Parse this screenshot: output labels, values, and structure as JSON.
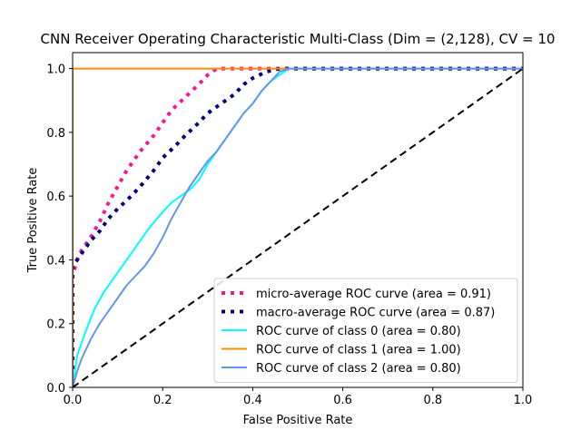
{
  "chart_data": {
    "type": "line",
    "title": "CNN Receiver Operating Characteristic Multi-Class (Dim = (2,128), CV = 10",
    "xlabel": "False Positive Rate",
    "ylabel": "True Positive Rate",
    "xlim": [
      0.0,
      1.0
    ],
    "ylim": [
      0.0,
      1.05
    ],
    "xticks": [
      0.0,
      0.2,
      0.4,
      0.6,
      0.8,
      1.0
    ],
    "yticks": [
      0.0,
      0.2,
      0.4,
      0.6,
      0.8,
      1.0
    ],
    "xtick_labels": [
      "0.0",
      "0.2",
      "0.4",
      "0.6",
      "0.8",
      "1.0"
    ],
    "ytick_labels": [
      "0.0",
      "0.2",
      "0.4",
      "0.6",
      "0.8",
      "1.0"
    ],
    "grid": false,
    "legend_position": "lower right",
    "series": [
      {
        "name": "micro-average ROC curve (area = 0.91)",
        "color": "#ff1493",
        "style": "dotted",
        "x": [
          0.0,
          0.0,
          0.01,
          0.02,
          0.04,
          0.06,
          0.08,
          0.1,
          0.12,
          0.15,
          0.18,
          0.2,
          0.22,
          0.25,
          0.28,
          0.3,
          0.32,
          0.35,
          0.4,
          0.5,
          0.7,
          1.0
        ],
        "y": [
          0.0,
          0.35,
          0.4,
          0.43,
          0.47,
          0.52,
          0.58,
          0.63,
          0.68,
          0.74,
          0.79,
          0.83,
          0.87,
          0.91,
          0.95,
          0.98,
          1.0,
          1.0,
          1.0,
          1.0,
          1.0,
          1.0
        ]
      },
      {
        "name": "macro-average ROC curve (area = 0.87)",
        "color": "#000080",
        "style": "dotted",
        "x": [
          0.0,
          0.0,
          0.02,
          0.04,
          0.06,
          0.08,
          0.1,
          0.13,
          0.15,
          0.18,
          0.2,
          0.23,
          0.25,
          0.28,
          0.3,
          0.33,
          0.36,
          0.38,
          0.4,
          0.43,
          0.46,
          0.48,
          0.5,
          0.6,
          0.8,
          1.0
        ],
        "y": [
          0.0,
          0.38,
          0.42,
          0.46,
          0.49,
          0.53,
          0.56,
          0.6,
          0.63,
          0.68,
          0.72,
          0.76,
          0.79,
          0.83,
          0.86,
          0.89,
          0.92,
          0.95,
          0.97,
          0.99,
          1.0,
          1.0,
          1.0,
          1.0,
          1.0,
          1.0
        ]
      },
      {
        "name": "ROC curve of class 0 (area = 0.80)",
        "color": "#00ffff",
        "style": "solid",
        "x": [
          0.0,
          0.01,
          0.02,
          0.03,
          0.05,
          0.07,
          0.09,
          0.11,
          0.13,
          0.15,
          0.17,
          0.2,
          0.22,
          0.24,
          0.26,
          0.28,
          0.3,
          0.32,
          0.34,
          0.36,
          0.38,
          0.4,
          0.42,
          0.44,
          0.46,
          0.48,
          0.5,
          0.7,
          1.0
        ],
        "y": [
          0.0,
          0.1,
          0.14,
          0.18,
          0.25,
          0.3,
          0.34,
          0.38,
          0.42,
          0.46,
          0.5,
          0.55,
          0.58,
          0.6,
          0.62,
          0.65,
          0.7,
          0.74,
          0.78,
          0.82,
          0.86,
          0.89,
          0.93,
          0.96,
          0.98,
          1.0,
          1.0,
          1.0,
          1.0
        ]
      },
      {
        "name": "ROC curve of class 1 (area = 1.00)",
        "color": "#ff8c00",
        "style": "solid",
        "x": [
          0.0,
          0.0,
          1.0
        ],
        "y": [
          0.0,
          1.0,
          1.0
        ]
      },
      {
        "name": "ROC curve of class 2 (area = 0.80)",
        "color": "#6495ed",
        "style": "solid",
        "x": [
          0.0,
          0.01,
          0.02,
          0.04,
          0.06,
          0.08,
          0.1,
          0.12,
          0.14,
          0.16,
          0.18,
          0.2,
          0.22,
          0.24,
          0.26,
          0.28,
          0.3,
          0.32,
          0.34,
          0.36,
          0.38,
          0.4,
          0.42,
          0.44,
          0.46,
          0.48,
          0.5,
          0.7,
          1.0
        ],
        "y": [
          0.0,
          0.05,
          0.09,
          0.15,
          0.2,
          0.24,
          0.28,
          0.32,
          0.35,
          0.38,
          0.42,
          0.47,
          0.53,
          0.58,
          0.63,
          0.67,
          0.71,
          0.74,
          0.78,
          0.82,
          0.86,
          0.89,
          0.93,
          0.96,
          0.99,
          1.0,
          1.0,
          1.0,
          1.0
        ]
      },
      {
        "name": "",
        "color": "#000000",
        "style": "dashed",
        "x": [
          0.0,
          1.0
        ],
        "y": [
          0.0,
          1.0
        ]
      }
    ]
  }
}
